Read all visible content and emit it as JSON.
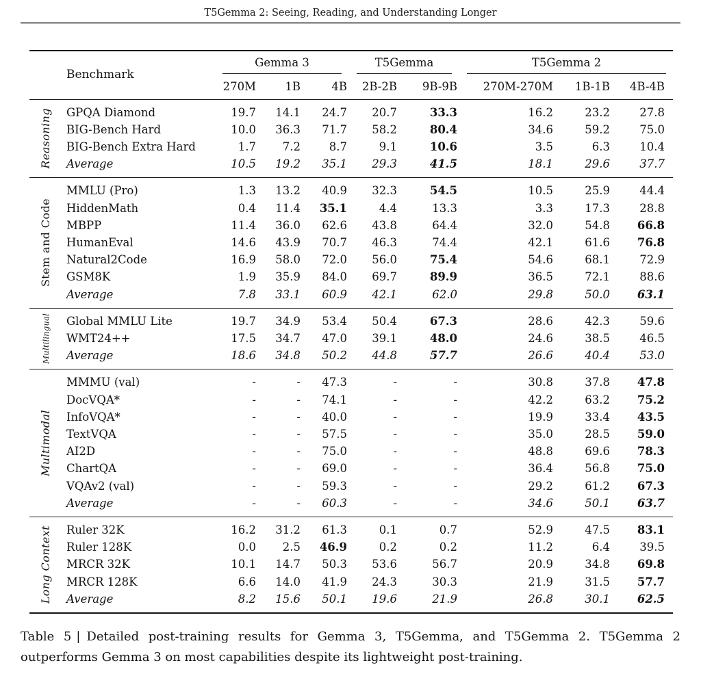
{
  "page_header": {
    "title": "T5Gemma 2: Seeing, Reading, and Understanding Longer"
  },
  "table": {
    "benchmark_header": "Benchmark",
    "groups": [
      {
        "label": "Gemma 3",
        "columns": [
          "270M",
          "1B",
          "4B"
        ]
      },
      {
        "label": "T5Gemma",
        "columns": [
          "2B-2B",
          "9B-9B"
        ]
      },
      {
        "label": "T5Gemma 2",
        "columns": [
          "270M-270M",
          "1B-1B",
          "4B-4B"
        ]
      }
    ],
    "sections": [
      {
        "label": "Reasoning",
        "label_italic": true,
        "label_small": false,
        "rows": [
          {
            "benchmark": "GPQA Diamond",
            "values": [
              "19.7",
              "14.1",
              "24.7",
              "20.7",
              "33.3",
              "16.2",
              "23.2",
              "27.8"
            ],
            "bold": [
              4
            ],
            "italic": false
          },
          {
            "benchmark": "BIG-Bench Hard",
            "values": [
              "10.0",
              "36.3",
              "71.7",
              "58.2",
              "80.4",
              "34.6",
              "59.2",
              "75.0"
            ],
            "bold": [
              4
            ],
            "italic": false
          },
          {
            "benchmark": "BIG-Bench Extra Hard",
            "values": [
              "1.7",
              "7.2",
              "8.7",
              "9.1",
              "10.6",
              "3.5",
              "6.3",
              "10.4"
            ],
            "bold": [
              4
            ],
            "italic": false
          },
          {
            "benchmark": "Average",
            "values": [
              "10.5",
              "19.2",
              "35.1",
              "29.3",
              "41.5",
              "18.1",
              "29.6",
              "37.7"
            ],
            "bold": [
              4
            ],
            "italic": true
          }
        ]
      },
      {
        "label": "Stem and Code",
        "label_italic": false,
        "label_small": false,
        "rows": [
          {
            "benchmark": "MMLU (Pro)",
            "values": [
              "1.3",
              "13.2",
              "40.9",
              "32.3",
              "54.5",
              "10.5",
              "25.9",
              "44.4"
            ],
            "bold": [
              4
            ],
            "italic": false
          },
          {
            "benchmark": "HiddenMath",
            "values": [
              "0.4",
              "11.4",
              "35.1",
              "4.4",
              "13.3",
              "3.3",
              "17.3",
              "28.8"
            ],
            "bold": [
              2
            ],
            "italic": false
          },
          {
            "benchmark": "MBPP",
            "values": [
              "11.4",
              "36.0",
              "62.6",
              "43.8",
              "64.4",
              "32.0",
              "54.8",
              "66.8"
            ],
            "bold": [
              7
            ],
            "italic": false
          },
          {
            "benchmark": "HumanEval",
            "values": [
              "14.6",
              "43.9",
              "70.7",
              "46.3",
              "74.4",
              "42.1",
              "61.6",
              "76.8"
            ],
            "bold": [
              7
            ],
            "italic": false
          },
          {
            "benchmark": "Natural2Code",
            "values": [
              "16.9",
              "58.0",
              "72.0",
              "56.0",
              "75.4",
              "54.6",
              "68.1",
              "72.9"
            ],
            "bold": [
              4
            ],
            "italic": false
          },
          {
            "benchmark": "GSM8K",
            "values": [
              "1.9",
              "35.9",
              "84.0",
              "69.7",
              "89.9",
              "36.5",
              "72.1",
              "88.6"
            ],
            "bold": [
              4
            ],
            "italic": false
          },
          {
            "benchmark": "Average",
            "values": [
              "7.8",
              "33.1",
              "60.9",
              "42.1",
              "62.0",
              "29.8",
              "50.0",
              "63.1"
            ],
            "bold": [
              7
            ],
            "italic": true
          }
        ]
      },
      {
        "label": "Multilingual",
        "label_italic": true,
        "label_small": true,
        "rows": [
          {
            "benchmark": "Global MMLU Lite",
            "values": [
              "19.7",
              "34.9",
              "53.4",
              "50.4",
              "67.3",
              "28.6",
              "42.3",
              "59.6"
            ],
            "bold": [
              4
            ],
            "italic": false
          },
          {
            "benchmark": "WMT24++",
            "values": [
              "17.5",
              "34.7",
              "47.0",
              "39.1",
              "48.0",
              "24.6",
              "38.5",
              "46.5"
            ],
            "bold": [
              4
            ],
            "italic": false
          },
          {
            "benchmark": "Average",
            "values": [
              "18.6",
              "34.8",
              "50.2",
              "44.8",
              "57.7",
              "26.6",
              "40.4",
              "53.0"
            ],
            "bold": [
              4
            ],
            "italic": true
          }
        ]
      },
      {
        "label": "Multimodal",
        "label_italic": true,
        "label_small": false,
        "rows": [
          {
            "benchmark": "MMMU (val)",
            "values": [
              "-",
              "-",
              "47.3",
              "-",
              "-",
              "30.8",
              "37.8",
              "47.8"
            ],
            "bold": [
              7
            ],
            "italic": false
          },
          {
            "benchmark": "DocVQA*",
            "values": [
              "-",
              "-",
              "74.1",
              "-",
              "-",
              "42.2",
              "63.2",
              "75.2"
            ],
            "bold": [
              7
            ],
            "italic": false
          },
          {
            "benchmark": "InfoVQA*",
            "values": [
              "-",
              "-",
              "40.0",
              "-",
              "-",
              "19.9",
              "33.4",
              "43.5"
            ],
            "bold": [
              7
            ],
            "italic": false
          },
          {
            "benchmark": "TextVQA",
            "values": [
              "-",
              "-",
              "57.5",
              "-",
              "-",
              "35.0",
              "28.5",
              "59.0"
            ],
            "bold": [
              7
            ],
            "italic": false
          },
          {
            "benchmark": "AI2D",
            "values": [
              "-",
              "-",
              "75.0",
              "-",
              "-",
              "48.8",
              "69.6",
              "78.3"
            ],
            "bold": [
              7
            ],
            "italic": false
          },
          {
            "benchmark": "ChartQA",
            "values": [
              "-",
              "-",
              "69.0",
              "-",
              "-",
              "36.4",
              "56.8",
              "75.0"
            ],
            "bold": [
              7
            ],
            "italic": false
          },
          {
            "benchmark": "VQAv2 (val)",
            "values": [
              "-",
              "-",
              "59.3",
              "-",
              "-",
              "29.2",
              "61.2",
              "67.3"
            ],
            "bold": [
              7
            ],
            "italic": false
          },
          {
            "benchmark": "Average",
            "values": [
              "-",
              "-",
              "60.3",
              "-",
              "-",
              "34.6",
              "50.1",
              "63.7"
            ],
            "bold": [
              7
            ],
            "italic": true
          }
        ]
      },
      {
        "label": "Long Context",
        "label_italic": true,
        "label_small": false,
        "rows": [
          {
            "benchmark": "Ruler 32K",
            "values": [
              "16.2",
              "31.2",
              "61.3",
              "0.1",
              "0.7",
              "52.9",
              "47.5",
              "83.1"
            ],
            "bold": [
              7
            ],
            "italic": false
          },
          {
            "benchmark": "Ruler 128K",
            "values": [
              "0.0",
              "2.5",
              "46.9",
              "0.2",
              "0.2",
              "11.2",
              "6.4",
              "39.5"
            ],
            "bold": [
              2
            ],
            "italic": false
          },
          {
            "benchmark": "MRCR 32K",
            "values": [
              "10.1",
              "14.7",
              "50.3",
              "53.6",
              "56.7",
              "20.9",
              "34.8",
              "69.8"
            ],
            "bold": [
              7
            ],
            "italic": false
          },
          {
            "benchmark": "MRCR 128K",
            "values": [
              "6.6",
              "14.0",
              "41.9",
              "24.3",
              "30.3",
              "21.9",
              "31.5",
              "57.7"
            ],
            "bold": [
              7
            ],
            "italic": false
          },
          {
            "benchmark": "Average",
            "values": [
              "8.2",
              "15.6",
              "50.1",
              "19.6",
              "21.9",
              "26.8",
              "30.1",
              "62.5"
            ],
            "bold": [
              7
            ],
            "italic": true
          }
        ]
      }
    ]
  },
  "caption": {
    "label": "Table 5",
    "separator": "|",
    "text": "Detailed post-training results for Gemma 3, T5Gemma, and T5Gemma 2. T5Gemma 2 outperforms Gemma 3 on most capabilities despite its lightweight post-training."
  }
}
